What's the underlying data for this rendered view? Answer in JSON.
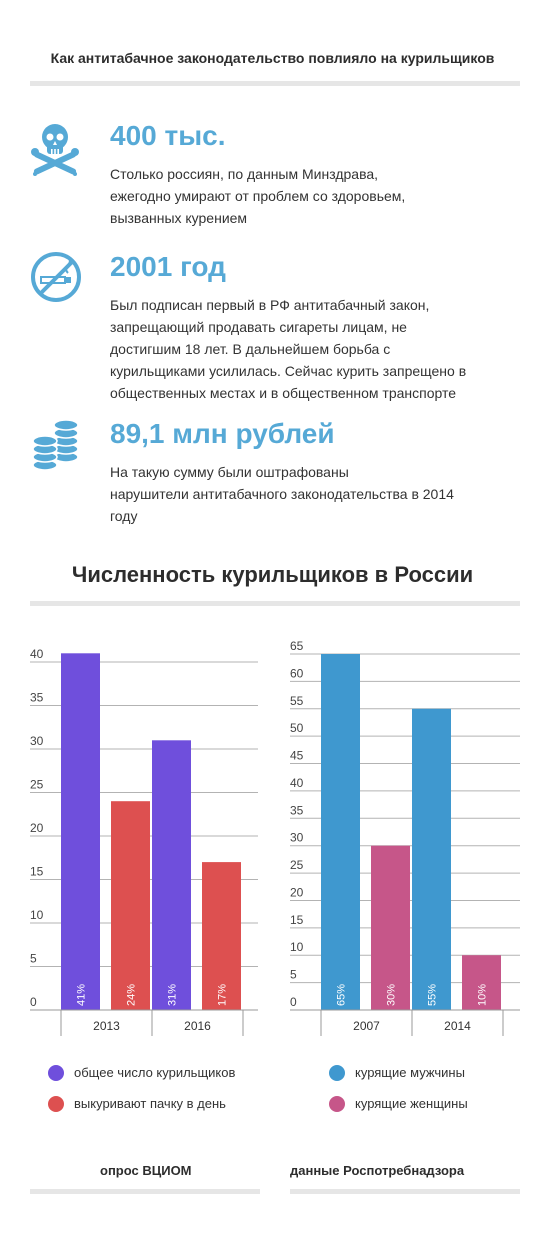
{
  "header": {
    "title": "Как антитабачное законодательство повлияло на курильщиков"
  },
  "facts": [
    {
      "icon": "skull-crossbones-icon",
      "number": "400 тыс.",
      "text": [
        "Столько россиян, по данным Минздрава,",
        "ежегодно умирают от проблем со здоровьем,",
        "вызванных курением"
      ]
    },
    {
      "icon": "no-smoking-icon",
      "number": "2001 год",
      "text": [
        "Был подписан первый в РФ антитабачный закон,",
        "запрещающий продавать сигареты лицам, не",
        "достигшим 18 лет. В дальнейшем борьба с",
        "курильщиками усилилась. Сейчас курить запрещено в",
        "общественных местах и в общественном транспорте"
      ]
    },
    {
      "icon": "coin-stacks-icon",
      "number": "89,1 млн рублей",
      "text": [
        "На такую сумму были оштрафованы",
        "нарушители антитабачного законодательства в 2014",
        "году"
      ]
    }
  ],
  "section": {
    "title": "Численность курильщиков в России"
  },
  "colors": {
    "accent": "#56a9d6",
    "purple": "#6f4fdc",
    "red": "#dd5050",
    "blue": "#3f98cf",
    "pink": "#c65689"
  },
  "chart_data": [
    {
      "type": "bar",
      "categories": [
        "2013",
        "2016"
      ],
      "ylim": [
        0,
        40
      ],
      "yticks": [
        0,
        5,
        10,
        15,
        20,
        25,
        30,
        35,
        40
      ],
      "series": [
        {
          "name": "общее число курильщиков",
          "color": "#6f4fdc",
          "values": [
            41,
            31
          ],
          "labels": [
            "41%",
            "31%"
          ]
        },
        {
          "name": "выкуривают пачку в день",
          "color": "#dd5050",
          "values": [
            24,
            17
          ],
          "labels": [
            "24%",
            "17%"
          ]
        }
      ],
      "source": "опрос ВЦИОМ"
    },
    {
      "type": "bar",
      "categories": [
        "2007",
        "2014"
      ],
      "ylim": [
        0,
        65
      ],
      "yticks": [
        0,
        5,
        10,
        15,
        20,
        25,
        30,
        35,
        40,
        45,
        50,
        55,
        60,
        65
      ],
      "series": [
        {
          "name": "курящие мужчины",
          "color": "#3f98cf",
          "values": [
            65,
            55
          ],
          "labels": [
            "65%",
            "55%"
          ]
        },
        {
          "name": "курящие женщины",
          "color": "#c65689",
          "values": [
            30,
            10
          ],
          "labels": [
            "30%",
            "10%"
          ]
        }
      ],
      "source": "данные Роспотребнадзора"
    }
  ]
}
